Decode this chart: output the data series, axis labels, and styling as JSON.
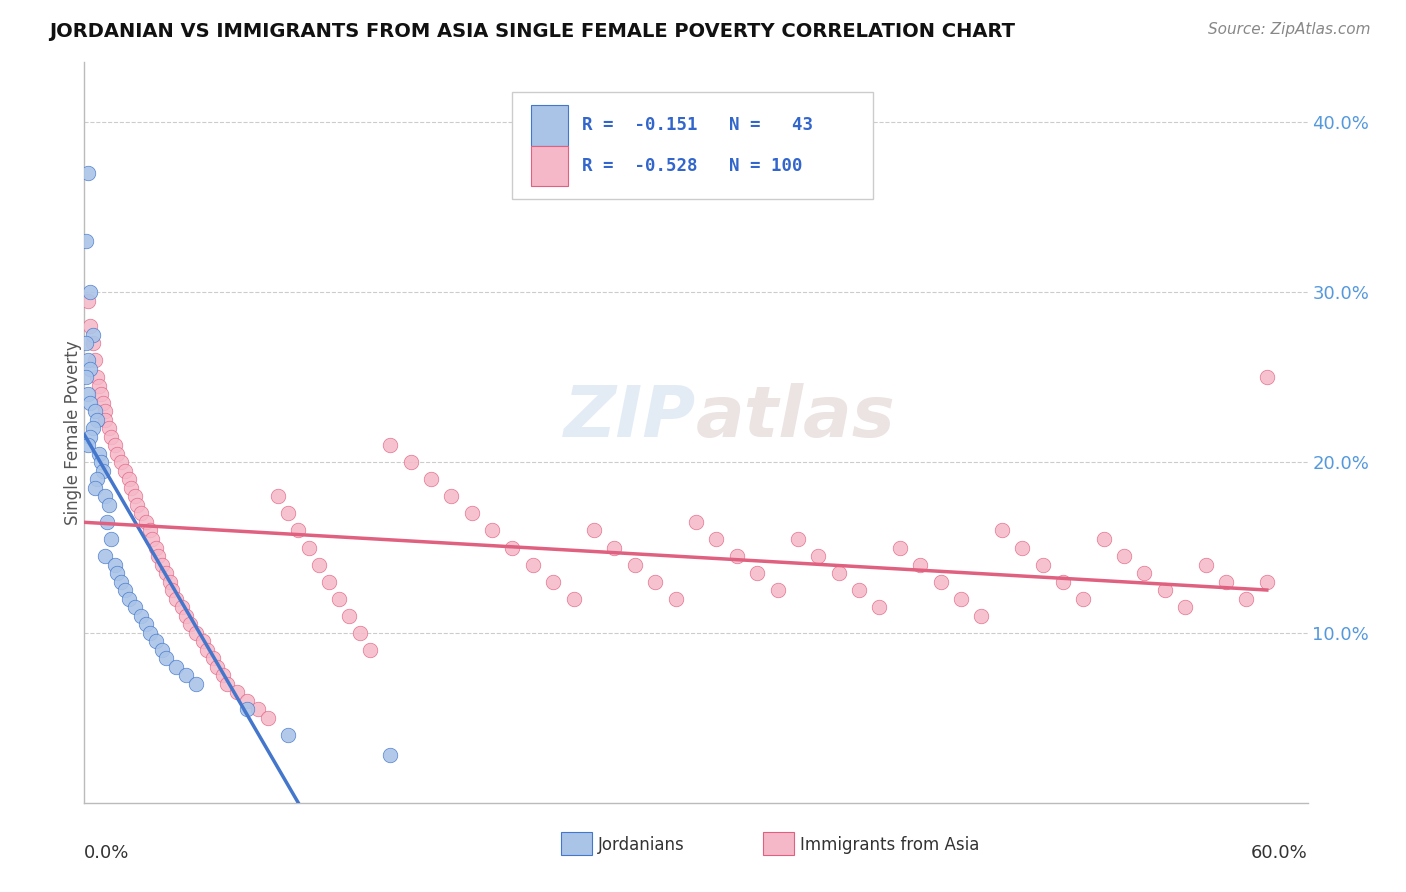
{
  "title": "JORDANIAN VS IMMIGRANTS FROM ASIA SINGLE FEMALE POVERTY CORRELATION CHART",
  "source": "Source: ZipAtlas.com",
  "ylabel": "Single Female Poverty",
  "xlim": [
    0.0,
    0.6
  ],
  "ylim": [
    0.0,
    0.435
  ],
  "ytick_vals": [
    0.1,
    0.2,
    0.3,
    0.4
  ],
  "ytick_labels": [
    "10.0%",
    "20.0%",
    "30.0%",
    "40.0%"
  ],
  "color_jordan": "#aac4e8",
  "color_asia": "#f5b8c8",
  "color_trendline_jordan": "#4477cc",
  "color_trendline_asia": "#e06080",
  "color_dashed": "#aaccee",
  "watermark_text": "ZIPatlas",
  "legend_text1": "R =  -0.151   N =   43",
  "legend_text2": "R =  -0.528   N = 100",
  "jordanians_x": [
    0.002,
    0.001,
    0.003,
    0.004,
    0.001,
    0.002,
    0.003,
    0.001,
    0.002,
    0.003,
    0.005,
    0.006,
    0.004,
    0.003,
    0.002,
    0.007,
    0.008,
    0.009,
    0.006,
    0.005,
    0.01,
    0.012,
    0.011,
    0.013,
    0.01,
    0.015,
    0.016,
    0.018,
    0.02,
    0.022,
    0.025,
    0.028,
    0.03,
    0.032,
    0.035,
    0.038,
    0.04,
    0.045,
    0.05,
    0.055,
    0.08,
    0.1,
    0.15
  ],
  "jordanians_y": [
    0.37,
    0.33,
    0.3,
    0.275,
    0.27,
    0.26,
    0.255,
    0.25,
    0.24,
    0.235,
    0.23,
    0.225,
    0.22,
    0.215,
    0.21,
    0.205,
    0.2,
    0.195,
    0.19,
    0.185,
    0.18,
    0.175,
    0.165,
    0.155,
    0.145,
    0.14,
    0.135,
    0.13,
    0.125,
    0.12,
    0.115,
    0.11,
    0.105,
    0.1,
    0.095,
    0.09,
    0.085,
    0.08,
    0.075,
    0.07,
    0.055,
    0.04,
    0.028
  ],
  "asia_x": [
    0.002,
    0.003,
    0.004,
    0.005,
    0.006,
    0.007,
    0.008,
    0.009,
    0.01,
    0.01,
    0.012,
    0.013,
    0.015,
    0.016,
    0.018,
    0.02,
    0.022,
    0.023,
    0.025,
    0.026,
    0.028,
    0.03,
    0.032,
    0.033,
    0.035,
    0.036,
    0.038,
    0.04,
    0.042,
    0.043,
    0.045,
    0.048,
    0.05,
    0.052,
    0.055,
    0.058,
    0.06,
    0.063,
    0.065,
    0.068,
    0.07,
    0.075,
    0.08,
    0.085,
    0.09,
    0.095,
    0.1,
    0.105,
    0.11,
    0.115,
    0.12,
    0.125,
    0.13,
    0.135,
    0.14,
    0.15,
    0.16,
    0.17,
    0.18,
    0.19,
    0.2,
    0.21,
    0.22,
    0.23,
    0.24,
    0.25,
    0.26,
    0.27,
    0.28,
    0.29,
    0.3,
    0.31,
    0.32,
    0.33,
    0.34,
    0.35,
    0.36,
    0.37,
    0.38,
    0.39,
    0.4,
    0.41,
    0.42,
    0.43,
    0.44,
    0.45,
    0.46,
    0.47,
    0.48,
    0.49,
    0.5,
    0.51,
    0.52,
    0.53,
    0.54,
    0.55,
    0.56,
    0.57,
    0.58,
    0.58
  ],
  "asia_y": [
    0.295,
    0.28,
    0.27,
    0.26,
    0.25,
    0.245,
    0.24,
    0.235,
    0.23,
    0.225,
    0.22,
    0.215,
    0.21,
    0.205,
    0.2,
    0.195,
    0.19,
    0.185,
    0.18,
    0.175,
    0.17,
    0.165,
    0.16,
    0.155,
    0.15,
    0.145,
    0.14,
    0.135,
    0.13,
    0.125,
    0.12,
    0.115,
    0.11,
    0.105,
    0.1,
    0.095,
    0.09,
    0.085,
    0.08,
    0.075,
    0.07,
    0.065,
    0.06,
    0.055,
    0.05,
    0.18,
    0.17,
    0.16,
    0.15,
    0.14,
    0.13,
    0.12,
    0.11,
    0.1,
    0.09,
    0.21,
    0.2,
    0.19,
    0.18,
    0.17,
    0.16,
    0.15,
    0.14,
    0.13,
    0.12,
    0.16,
    0.15,
    0.14,
    0.13,
    0.12,
    0.165,
    0.155,
    0.145,
    0.135,
    0.125,
    0.155,
    0.145,
    0.135,
    0.125,
    0.115,
    0.15,
    0.14,
    0.13,
    0.12,
    0.11,
    0.16,
    0.15,
    0.14,
    0.13,
    0.12,
    0.155,
    0.145,
    0.135,
    0.125,
    0.115,
    0.14,
    0.13,
    0.12,
    0.25,
    0.13
  ]
}
